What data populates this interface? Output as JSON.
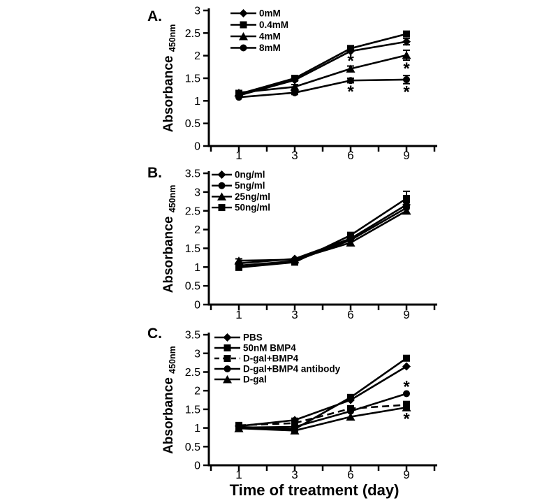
{
  "figure": {
    "xlabel": "Time of treatment (day)",
    "background_color": "#ffffff",
    "ink_color": "#000000"
  },
  "chart_data": [
    {
      "type": "line",
      "panel_label": "A.",
      "ylabel": "Absorbance",
      "ylabel_sub": "450nm",
      "x": [
        1,
        3,
        6,
        9
      ],
      "xtick_labels": [
        "1",
        "3",
        "6",
        "9"
      ],
      "ylim": [
        0,
        3
      ],
      "ytick_step": 0.5,
      "ytick_labels": [
        "0",
        "0.5",
        "1",
        "1.5",
        "2",
        "2.5",
        "3"
      ],
      "legend_position": "top-left-inside",
      "grid": false,
      "series": [
        {
          "name": "0mM",
          "marker": "diamond",
          "line": "solid",
          "values": [
            1.12,
            1.46,
            2.1,
            2.31
          ],
          "errors": [
            0,
            0,
            0,
            0.07
          ]
        },
        {
          "name": "0.4mM",
          "marker": "square",
          "line": "solid",
          "values": [
            1.15,
            1.5,
            2.16,
            2.48
          ],
          "errors": [
            0,
            0,
            0,
            0
          ]
        },
        {
          "name": "4mM",
          "marker": "triangle",
          "line": "solid",
          "values": [
            1.18,
            1.31,
            1.71,
            2.01
          ],
          "errors": [
            0.05,
            0.05,
            0.06,
            0.11
          ]
        },
        {
          "name": "8mM",
          "marker": "circle",
          "line": "solid",
          "values": [
            1.08,
            1.18,
            1.45,
            1.47
          ],
          "errors": [
            0,
            0.04,
            0.05,
            0.09
          ]
        }
      ],
      "annotations": [
        {
          "day": 6,
          "value": 1.95,
          "text": "*"
        },
        {
          "day": 6,
          "value": 1.27,
          "text": "*"
        },
        {
          "day": 9,
          "value": 1.78,
          "text": "*"
        },
        {
          "day": 9,
          "value": 1.26,
          "text": "*"
        }
      ]
    },
    {
      "type": "line",
      "panel_label": "B.",
      "ylabel": "Absorbance",
      "ylabel_sub": "450nm",
      "x": [
        1,
        3,
        6,
        9
      ],
      "xtick_labels": [
        "1",
        "3",
        "6",
        "9"
      ],
      "ylim": [
        0,
        3.5
      ],
      "ytick_step": 0.5,
      "ytick_labels": [
        "0",
        "0.5",
        "1",
        "1.5",
        "2",
        "2.5",
        "3",
        "3.5"
      ],
      "legend_position": "top-left-inside",
      "grid": false,
      "series": [
        {
          "name": "0ng/ml",
          "marker": "diamond",
          "line": "solid",
          "values": [
            1.1,
            1.22,
            1.76,
            2.66
          ],
          "errors": [
            0,
            0,
            0,
            0.06
          ]
        },
        {
          "name": "5ng/ml",
          "marker": "circle",
          "line": "solid",
          "values": [
            1.04,
            1.16,
            1.72,
            2.58
          ],
          "errors": [
            0,
            0,
            0,
            0
          ]
        },
        {
          "name": "25ng/ml",
          "marker": "triangle",
          "line": "solid",
          "values": [
            1.17,
            1.2,
            1.65,
            2.5
          ],
          "errors": [
            0.05,
            0,
            0,
            0
          ]
        },
        {
          "name": "50ng/ml",
          "marker": "square",
          "line": "solid",
          "values": [
            0.99,
            1.13,
            1.85,
            2.83
          ],
          "errors": [
            0,
            0,
            0.05,
            0.19
          ]
        }
      ],
      "annotations": []
    },
    {
      "type": "line",
      "panel_label": "C.",
      "ylabel": "Absorbance",
      "ylabel_sub": "450nm",
      "x": [
        1,
        3,
        6,
        9
      ],
      "xtick_labels": [
        "1",
        "3",
        "6",
        "9"
      ],
      "ylim": [
        0,
        3.5
      ],
      "ytick_step": 0.5,
      "ytick_labels": [
        "0",
        "0.5",
        "1",
        "1.5",
        "2",
        "2.5",
        "3",
        "3.5"
      ],
      "legend_position": "top-left-inside",
      "grid": false,
      "series": [
        {
          "name": "PBS",
          "marker": "diamond",
          "line": "solid",
          "values": [
            1.05,
            1.21,
            1.75,
            2.65
          ],
          "errors": [
            0,
            0.05,
            0,
            0
          ]
        },
        {
          "name": "50nM BMP4",
          "marker": "square",
          "line": "solid",
          "values": [
            1.03,
            0.97,
            1.82,
            2.87
          ],
          "errors": [
            0,
            0,
            0.07,
            0.05
          ]
        },
        {
          "name": "D-gal+BMP4",
          "marker": "square",
          "line": "dashed",
          "values": [
            1.07,
            1.13,
            1.52,
            1.62
          ],
          "errors": [
            0,
            0,
            0,
            0.09
          ]
        },
        {
          "name": "D-gal+BMP4 antibody",
          "marker": "circle",
          "line": "solid",
          "values": [
            1.01,
            1.03,
            1.45,
            1.92
          ],
          "errors": [
            0,
            0,
            0,
            0
          ]
        },
        {
          "name": "D-gal",
          "marker": "triangle",
          "line": "solid",
          "values": [
            0.99,
            0.93,
            1.3,
            1.55
          ],
          "errors": [
            0,
            0.04,
            0,
            0
          ]
        }
      ],
      "annotations": [
        {
          "day": 9,
          "value": 2.18,
          "text": "*"
        },
        {
          "day": 9,
          "value": 1.32,
          "text": "*"
        }
      ]
    }
  ]
}
